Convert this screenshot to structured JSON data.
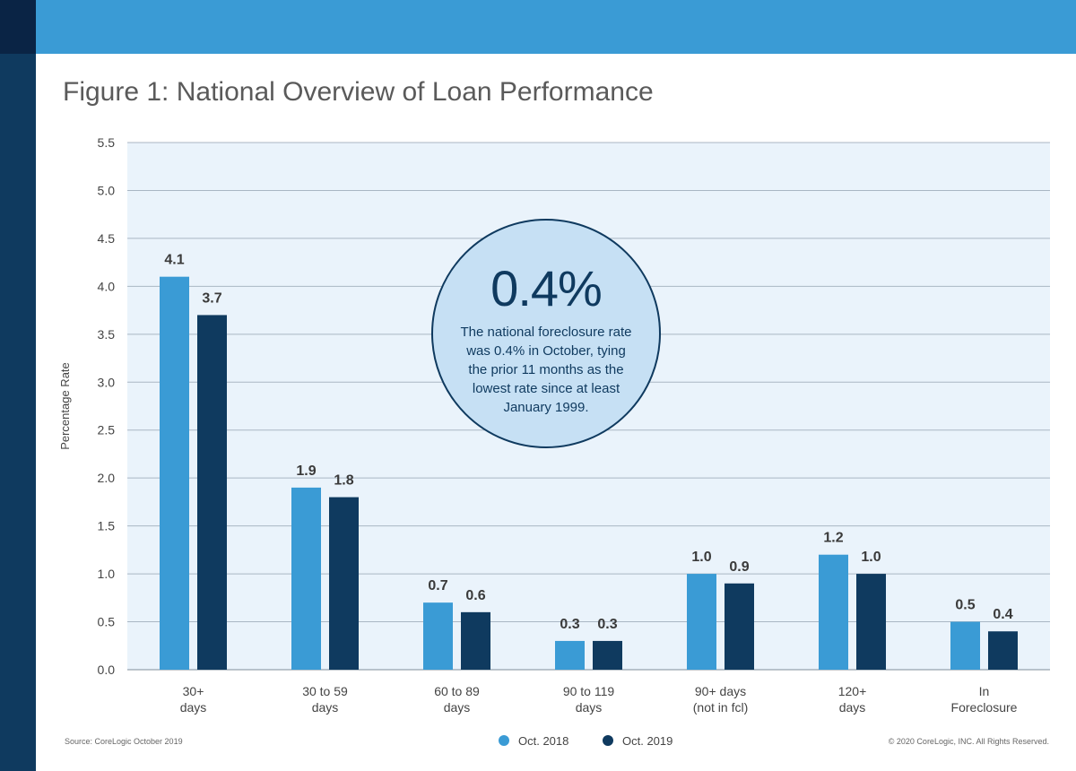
{
  "header": {
    "title": "Figure 1: National Overview of Loan Performance"
  },
  "colors": {
    "top_bar": "#3a9bd5",
    "side_bar": "#0f3a5f",
    "plot_bg": "#eaf3fb",
    "series1": "#3a9bd5",
    "series2": "#0f3a5f"
  },
  "callout": {
    "big": "0.4%",
    "text": "The national foreclosure rate was 0.4% in October, tying the prior 11 months as the lowest rate since at least January 1999."
  },
  "footer": {
    "source": "Source: CoreLogic October 2019",
    "copyright": "© 2020 CoreLogic, INC. All Rights Reserved."
  },
  "chart_data": {
    "type": "bar",
    "title": "Figure 1: National Overview of Loan Performance",
    "ylabel": "Percentage Rate",
    "xlabel": "",
    "ylim": [
      0,
      5.5
    ],
    "yticks": [
      "0.0",
      "0.5",
      "1.0",
      "1.5",
      "2.0",
      "2.5",
      "3.0",
      "3.5",
      "4.0",
      "4.5",
      "5.0",
      "5.5"
    ],
    "grid": true,
    "legend_position": "bottom-center",
    "categories": [
      [
        "30+",
        "days"
      ],
      [
        "30 to 59",
        "days"
      ],
      [
        "60 to 89",
        "days"
      ],
      [
        "90 to 119",
        "days"
      ],
      [
        "90+ days",
        "(not in fcl)"
      ],
      [
        "120+",
        "days"
      ],
      [
        "In",
        "Foreclosure"
      ]
    ],
    "series": [
      {
        "name": "Oct. 2018",
        "color": "#3a9bd5",
        "values": [
          4.1,
          1.9,
          0.7,
          0.3,
          1.0,
          1.2,
          0.5
        ],
        "labels": [
          "4.1",
          "1.9",
          "0.7",
          "0.3",
          "1.0",
          "1.2",
          "0.5"
        ]
      },
      {
        "name": "Oct. 2019",
        "color": "#0f3a5f",
        "values": [
          3.7,
          1.8,
          0.6,
          0.3,
          0.9,
          1.0,
          0.4
        ],
        "labels": [
          "3.7",
          "1.8",
          "0.6",
          "0.3",
          "0.9",
          "1.0",
          "0.4"
        ]
      }
    ]
  }
}
